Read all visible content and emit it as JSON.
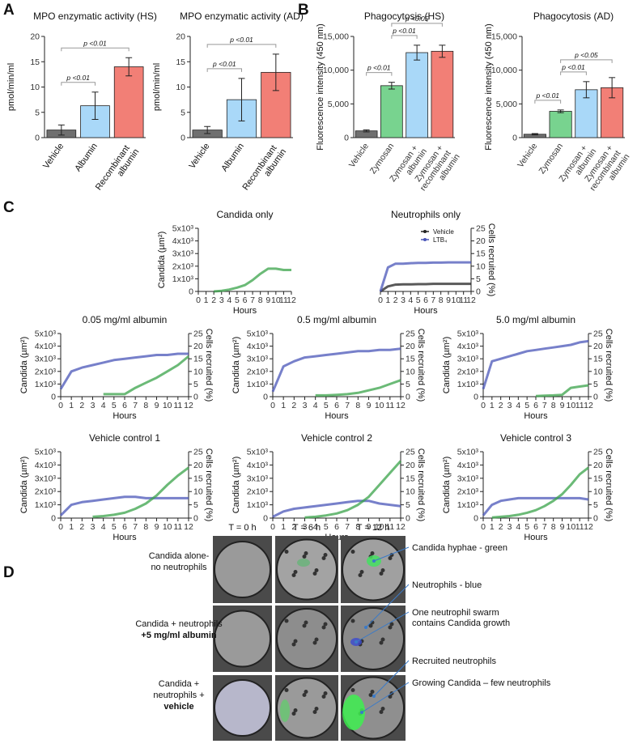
{
  "panel_labels": [
    "A",
    "B",
    "C",
    "D"
  ],
  "chart_data": [
    {
      "type": "bar",
      "title": "MPO enzymatic activity (HS)",
      "ylabel": "pmol/min/ml",
      "categories": [
        "Vehicle",
        "Albumin",
        "Recombinant albumin"
      ],
      "values": [
        1.5,
        6.3,
        14
      ],
      "errors": [
        1,
        2.7,
        1.8
      ],
      "colors": [
        "#6f6f6f",
        "#a9d8f8",
        "#f27f76"
      ],
      "ylim": [
        0,
        20
      ],
      "yticks": [
        0,
        5,
        10,
        15,
        20
      ],
      "annotations": [
        {
          "text": "p <0.01",
          "between": [
            "Vehicle",
            "Albumin"
          ]
        },
        {
          "text": "p <0.01",
          "between": [
            "Vehicle",
            "Recombinant albumin"
          ]
        }
      ]
    },
    {
      "type": "bar",
      "title": "MPO enzymatic activity (AD)",
      "ylabel": "pmol/min/ml",
      "categories": [
        "Vehicle",
        "Albumin",
        "Recombinant albumin"
      ],
      "values": [
        1.5,
        7.5,
        12.9
      ],
      "errors": [
        0.7,
        4.2,
        3.6
      ],
      "colors": [
        "#6f6f6f",
        "#a9d8f8",
        "#f27f76"
      ],
      "ylim": [
        0,
        20
      ],
      "yticks": [
        0,
        5,
        10,
        15,
        20
      ],
      "annotations": [
        {
          "text": "p <0.01",
          "between": [
            "Vehicle",
            "Albumin"
          ]
        },
        {
          "text": "p <0.01",
          "between": [
            "Vehicle",
            "Recombinant albumin"
          ]
        }
      ]
    },
    {
      "type": "bar",
      "title": "Phagocytosis (HS)",
      "ylabel": "Fluorescence intensity (450 nm)",
      "categories": [
        "Vehicle",
        "Zymosan",
        "Zymosan + albumin",
        "Zymosan + recombinant albumin"
      ],
      "values": [
        1000,
        7700,
        12600,
        12800
      ],
      "errors": [
        150,
        500,
        1100,
        900
      ],
      "colors": [
        "#6f6f6f",
        "#78d38f",
        "#a9d8f8",
        "#f27f76"
      ],
      "ylim": [
        0,
        15000
      ],
      "yticks": [
        0,
        {
          "value": 5000,
          "label": "5,000"
        },
        {
          "value": 10000,
          "label": "10,000"
        },
        {
          "value": 15000,
          "label": "15,000"
        }
      ],
      "annotations": [
        {
          "text": "p <0.01",
          "between": [
            "Vehicle",
            "Zymosan"
          ]
        },
        {
          "text": "p <0.01",
          "between": [
            "Zymosan",
            "Zymosan + albumin"
          ]
        },
        {
          "text": "p <0.05",
          "between": [
            "Zymosan",
            "Zymosan + recombinant albumin"
          ]
        }
      ]
    },
    {
      "type": "bar",
      "title": "Phagocytosis (AD)",
      "ylabel": "Fluorescence intensity (450 nm)",
      "categories": [
        "Vehicle",
        "Zymosan",
        "Zymosan + albumin",
        "Zymosan + recombinant albumin"
      ],
      "values": [
        500,
        3900,
        7100,
        7400
      ],
      "errors": [
        100,
        200,
        1200,
        1500
      ],
      "colors": [
        "#6f6f6f",
        "#78d38f",
        "#a9d8f8",
        "#f27f76"
      ],
      "ylim": [
        0,
        15000
      ],
      "yticks": [
        0,
        {
          "value": 5000,
          "label": "5,000"
        },
        {
          "value": 10000,
          "label": "10,000"
        },
        {
          "value": 15000,
          "label": "15,000"
        }
      ],
      "annotations": [
        {
          "text": "p <0.01",
          "between": [
            "Vehicle",
            "Zymosan"
          ]
        },
        {
          "text": "p <0.01",
          "between": [
            "Zymosan",
            "Zymosan + albumin"
          ]
        },
        {
          "text": "p <0.05",
          "between": [
            "Zymosan",
            "Zymosan + recombinant albumin"
          ]
        }
      ]
    },
    {
      "type": "line",
      "title": "Candida only",
      "xlabel": "Hours",
      "ylabel": "Candida (µm²)",
      "x": [
        0,
        1,
        2,
        3,
        4,
        5,
        6,
        7,
        8,
        9,
        10,
        11,
        12
      ],
      "xlim": [
        0,
        12
      ],
      "xticks": [
        0,
        1,
        2,
        3,
        4,
        5,
        6,
        7,
        8,
        9,
        10,
        11,
        12
      ],
      "ylim": [
        0,
        5000
      ],
      "yticks": [
        0,
        {
          "value": 1000,
          "label": "1x10³"
        },
        {
          "value": 2000,
          "label": "2x10³"
        },
        {
          "value": 3000,
          "label": "3x10³"
        },
        {
          "value": 4000,
          "label": "4x10³"
        },
        {
          "value": 5000,
          "label": "5x10³"
        }
      ],
      "series": [
        {
          "color": "#3aa34a",
          "values": [
            null,
            null,
            0,
            50,
            150,
            300,
            500,
            900,
            1400,
            1800,
            1800,
            1700,
            1700
          ]
        }
      ]
    },
    {
      "type": "line",
      "title": "Neutrophils only",
      "xlabel": "Hours",
      "y2label": "Cells recruited (%)",
      "legend": "upper right",
      "x": [
        0,
        1,
        2,
        3,
        4,
        5,
        6,
        7,
        8,
        9,
        10,
        11,
        12
      ],
      "xlim": [
        0,
        12
      ],
      "xticks": [
        0,
        1,
        2,
        3,
        4,
        5,
        6,
        7,
        8,
        9,
        10,
        11,
        12
      ],
      "y2lim": [
        0,
        25
      ],
      "y2ticks": [
        0,
        5,
        10,
        15,
        20,
        25
      ],
      "series": [
        {
          "name": "Vehicle",
          "color": "#222222",
          "axis": "y2",
          "values": [
            0,
            2,
            2.7,
            2.8,
            2.8,
            2.9,
            2.9,
            3,
            3,
            3,
            3,
            3,
            3
          ]
        },
        {
          "name": "LTB₄",
          "color": "#4a56b8",
          "axis": "y2",
          "values": [
            0,
            9.5,
            11,
            11,
            11.2,
            11.3,
            11.3,
            11.4,
            11.4,
            11.5,
            11.5,
            11.5,
            11.5
          ]
        }
      ]
    },
    {
      "type": "line",
      "title": "0.05 mg/ml albumin",
      "xlabel": "Hours",
      "ylabel": "Candida (µm²)",
      "y2label": "Cells recruited (%)",
      "x": [
        0,
        1,
        2,
        3,
        4,
        5,
        6,
        7,
        8,
        9,
        10,
        11,
        12
      ],
      "xlim": [
        0,
        12
      ],
      "xticks": [
        0,
        1,
        2,
        3,
        4,
        5,
        6,
        7,
        8,
        9,
        10,
        11,
        12
      ],
      "ylim": [
        0,
        5000
      ],
      "yticks": [
        0,
        {
          "value": 1000,
          "label": "1x10³"
        },
        {
          "value": 2000,
          "label": "2x10³"
        },
        {
          "value": 3000,
          "label": "3x10³"
        },
        {
          "value": 4000,
          "label": "4x10³"
        },
        {
          "value": 5000,
          "label": "5x10³"
        }
      ],
      "y2lim": [
        0,
        25
      ],
      "y2ticks": [
        0,
        5,
        10,
        15,
        20,
        25
      ],
      "series": [
        {
          "color": "#4a56b8",
          "axis": "y2",
          "values": [
            3,
            10,
            11.5,
            12.5,
            13.5,
            14.5,
            15,
            15.5,
            16,
            16.5,
            16.5,
            17,
            17
          ]
        },
        {
          "color": "#3aa34a",
          "values": [
            null,
            null,
            null,
            null,
            200,
            200,
            200,
            700,
            1100,
            1500,
            2000,
            2500,
            3200
          ]
        }
      ]
    },
    {
      "type": "line",
      "title": "0.5 mg/ml albumin",
      "xlabel": "Hours",
      "ylabel": "Candida (µm²)",
      "y2label": "Cells recruited (%)",
      "x": [
        0,
        1,
        2,
        3,
        4,
        5,
        6,
        7,
        8,
        9,
        10,
        11,
        12
      ],
      "xlim": [
        0,
        12
      ],
      "xticks": [
        0,
        1,
        2,
        3,
        4,
        5,
        6,
        7,
        8,
        9,
        10,
        11,
        12
      ],
      "ylim": [
        0,
        5000
      ],
      "yticks": [
        0,
        {
          "value": 1000,
          "label": "1x10³"
        },
        {
          "value": 2000,
          "label": "2x10³"
        },
        {
          "value": 3000,
          "label": "3x10³"
        },
        {
          "value": 4000,
          "label": "4x10³"
        },
        {
          "value": 5000,
          "label": "5x10³"
        }
      ],
      "y2lim": [
        0,
        25
      ],
      "y2ticks": [
        0,
        5,
        10,
        15,
        20,
        25
      ],
      "series": [
        {
          "color": "#4a56b8",
          "axis": "y2",
          "values": [
            2,
            12,
            14,
            15.5,
            16,
            16.5,
            17,
            17.5,
            18,
            18,
            18.5,
            18.5,
            19
          ]
        },
        {
          "color": "#3aa34a",
          "values": [
            null,
            null,
            null,
            null,
            100,
            100,
            150,
            200,
            300,
            500,
            700,
            1000,
            1300
          ]
        }
      ]
    },
    {
      "type": "line",
      "title": "5.0 mg/ml albumin",
      "xlabel": "Hours",
      "ylabel": "Candida (µm²)",
      "y2label": "Cells recruited (%)",
      "x": [
        0,
        1,
        2,
        3,
        4,
        5,
        6,
        7,
        8,
        9,
        10,
        11,
        12
      ],
      "xlim": [
        0,
        12
      ],
      "xticks": [
        0,
        1,
        2,
        3,
        4,
        5,
        6,
        7,
        8,
        9,
        10,
        11,
        12
      ],
      "ylim": [
        0,
        5000
      ],
      "yticks": [
        0,
        {
          "value": 1000,
          "label": "1x10³"
        },
        {
          "value": 2000,
          "label": "2x10³"
        },
        {
          "value": 3000,
          "label": "3x10³"
        },
        {
          "value": 4000,
          "label": "4x10³"
        },
        {
          "value": 5000,
          "label": "5x10³"
        }
      ],
      "y2lim": [
        0,
        25
      ],
      "y2ticks": [
        0,
        5,
        10,
        15,
        20,
        25
      ],
      "series": [
        {
          "color": "#4a56b8",
          "axis": "y2",
          "values": [
            3,
            14,
            15,
            16,
            17,
            18,
            18.5,
            19,
            19.5,
            20,
            20.5,
            21.5,
            22
          ]
        },
        {
          "color": "#3aa34a",
          "values": [
            null,
            null,
            null,
            null,
            null,
            null,
            50,
            80,
            100,
            150,
            700,
            800,
            900
          ]
        }
      ]
    },
    {
      "type": "line",
      "title": "Vehicle control 1",
      "xlabel": "Hours",
      "ylabel": "Candida (µm²)",
      "y2label": "Cells recruited (%)",
      "x": [
        0,
        1,
        2,
        3,
        4,
        5,
        6,
        7,
        8,
        9,
        10,
        11,
        12
      ],
      "xlim": [
        0,
        12
      ],
      "xticks": [
        0,
        1,
        2,
        3,
        4,
        5,
        6,
        7,
        8,
        9,
        10,
        11,
        12
      ],
      "ylim": [
        0,
        5000
      ],
      "yticks": [
        0,
        {
          "value": 1000,
          "label": "1x10³"
        },
        {
          "value": 2000,
          "label": "2x10³"
        },
        {
          "value": 3000,
          "label": "3x10³"
        },
        {
          "value": 4000,
          "label": "4x10³"
        },
        {
          "value": 5000,
          "label": "5x10³"
        }
      ],
      "y2lim": [
        0,
        25
      ],
      "y2ticks": [
        0,
        5,
        10,
        15,
        20,
        25
      ],
      "series": [
        {
          "color": "#4a56b8",
          "axis": "y2",
          "values": [
            1,
            5,
            6,
            6.5,
            7,
            7.5,
            8,
            8,
            7.5,
            7.5,
            7.5,
            7.5,
            7.5
          ]
        },
        {
          "color": "#3aa34a",
          "values": [
            null,
            null,
            null,
            100,
            150,
            250,
            400,
            700,
            1100,
            1700,
            2500,
            3200,
            3800
          ]
        }
      ]
    },
    {
      "type": "line",
      "title": "Vehicle control 2",
      "xlabel": "Hours",
      "ylabel": "Candida (µm²)",
      "y2label": "Cells recruited (%)",
      "x": [
        0,
        1,
        2,
        3,
        4,
        5,
        6,
        7,
        8,
        9,
        10,
        11,
        12
      ],
      "xlim": [
        0,
        12
      ],
      "xticks": [
        0,
        1,
        2,
        3,
        4,
        5,
        6,
        7,
        8,
        9,
        10,
        11,
        12
      ],
      "ylim": [
        0,
        5000
      ],
      "yticks": [
        0,
        {
          "value": 1000,
          "label": "1x10³"
        },
        {
          "value": 2000,
          "label": "2x10³"
        },
        {
          "value": 3000,
          "label": "3x10³"
        },
        {
          "value": 4000,
          "label": "4x10³"
        },
        {
          "value": 5000,
          "label": "5x10³"
        }
      ],
      "y2lim": [
        0,
        25
      ],
      "y2ticks": [
        0,
        5,
        10,
        15,
        20,
        25
      ],
      "series": [
        {
          "color": "#4a56b8",
          "axis": "y2",
          "values": [
            0.5,
            2.5,
            3.5,
            4,
            4.5,
            5,
            5.5,
            6,
            6.5,
            6.5,
            5.5,
            5,
            4.5
          ]
        },
        {
          "color": "#3aa34a",
          "values": [
            null,
            null,
            null,
            50,
            100,
            200,
            350,
            600,
            1000,
            1600,
            2500,
            3400,
            4300
          ]
        }
      ]
    },
    {
      "type": "line",
      "title": "Vehicle control 3",
      "xlabel": "Hours",
      "ylabel": "Candida (µm²)",
      "y2label": "Cells recruited (%)",
      "x": [
        0,
        1,
        2,
        3,
        4,
        5,
        6,
        7,
        8,
        9,
        10,
        11,
        12
      ],
      "xlim": [
        0,
        12
      ],
      "xticks": [
        0,
        1,
        2,
        3,
        4,
        5,
        6,
        7,
        8,
        9,
        10,
        11,
        12
      ],
      "ylim": [
        0,
        5000
      ],
      "yticks": [
        0,
        {
          "value": 1000,
          "label": "1x10³"
        },
        {
          "value": 2000,
          "label": "2x10³"
        },
        {
          "value": 3000,
          "label": "3x10³"
        },
        {
          "value": 4000,
          "label": "4x10³"
        },
        {
          "value": 5000,
          "label": "5x10³"
        }
      ],
      "y2lim": [
        0,
        25
      ],
      "y2ticks": [
        0,
        5,
        10,
        15,
        20,
        25
      ],
      "series": [
        {
          "color": "#4a56b8",
          "axis": "y2",
          "values": [
            1,
            5,
            6.5,
            7,
            7.5,
            7.5,
            7.5,
            7.5,
            7.5,
            7.5,
            7.5,
            7.5,
            7
          ]
        },
        {
          "color": "#3aa34a",
          "values": [
            null,
            50,
            100,
            150,
            250,
            400,
            600,
            900,
            1300,
            1800,
            2500,
            3300,
            3800
          ]
        }
      ]
    }
  ],
  "panel_d": {
    "columns": [
      "T = 0 h",
      "T = 6 h",
      "T = 12 h"
    ],
    "rows": [
      {
        "text": [
          "Candida alone-",
          "no neutrophils"
        ]
      },
      {
        "text": [
          "Candida + neutrophils"
        ],
        "bold_text": [
          "+5 mg/ml albumin"
        ]
      },
      {
        "text": [
          "Candida +",
          "neutrophils +"
        ],
        "bold_text": [
          "vehicle"
        ]
      }
    ],
    "annotations": [
      {
        "text": [
          "Candida hyphae - green"
        ]
      },
      {
        "text": [
          "Neutrophils - blue"
        ]
      },
      {
        "text": [
          "One neutrophil swarm",
          "contains Candida growth"
        ]
      },
      {
        "text": [
          "Recruited neutrophils"
        ]
      },
      {
        "text": [
          "Growing Candida – few neutrophils"
        ]
      }
    ]
  }
}
